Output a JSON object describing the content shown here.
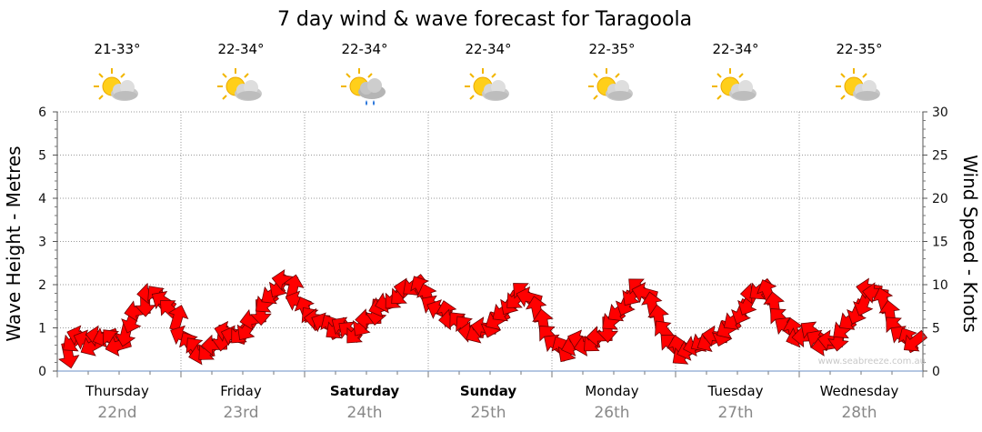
{
  "chart_data": {
    "type": "line",
    "title": "7 day wind & wave forecast for Taragoola",
    "ylabel_left": "Wave Height - Metres",
    "ylabel_right": "Wind Speed - Knots",
    "ylim_left": [
      0,
      6
    ],
    "ylim_right": [
      0,
      30
    ],
    "yticks_left": [
      "0",
      "1",
      "2",
      "3",
      "4",
      "5",
      "6"
    ],
    "yticks_right": [
      "0",
      "5",
      "10",
      "15",
      "20",
      "25",
      "30"
    ],
    "days": [
      {
        "name": "Thursday",
        "date": "22nd",
        "temp": "21-33°",
        "icon": "partly-cloudy-icon",
        "bold": false
      },
      {
        "name": "Friday",
        "date": "23rd",
        "temp": "22-34°",
        "icon": "partly-cloudy-icon",
        "bold": false
      },
      {
        "name": "Saturday",
        "date": "24th",
        "temp": "22-34°",
        "icon": "showers-icon",
        "bold": true
      },
      {
        "name": "Sunday",
        "date": "25th",
        "temp": "22-34°",
        "icon": "partly-cloudy-icon",
        "bold": true
      },
      {
        "name": "Monday",
        "date": "26th",
        "temp": "22-35°",
        "icon": "partly-cloudy-icon",
        "bold": false
      },
      {
        "name": "Tuesday",
        "date": "27th",
        "temp": "22-34°",
        "icon": "partly-cloudy-icon",
        "bold": false
      },
      {
        "name": "Wednesday",
        "date": "28th",
        "temp": "22-35°",
        "icon": "partly-cloudy-icon",
        "bold": false
      }
    ],
    "series": [
      {
        "name": "Wind Speed (knots)",
        "color": "#ff0000",
        "unit_axis": "right",
        "values": [
          2,
          3.5,
          4,
          3.5,
          3,
          4,
          4,
          3.5,
          3,
          4.5,
          6,
          7,
          8,
          9,
          8.5,
          8,
          7,
          6,
          4,
          3,
          2.5,
          2,
          2.5,
          3,
          4,
          4.5,
          4,
          4.5,
          5,
          6,
          7,
          8,
          9,
          10,
          10.5,
          9.5,
          8,
          7,
          6,
          6,
          5.5,
          5,
          5,
          5,
          4.5,
          4.5,
          5.5,
          6,
          7,
          7.5,
          8,
          8.5,
          9,
          9.5,
          10,
          9.5,
          8.5,
          7.5,
          7,
          6.5,
          6,
          5.5,
          5,
          4.5,
          4.5,
          5,
          5.5,
          6,
          7,
          8,
          8.5,
          9,
          8.5,
          7,
          5.5,
          4,
          3,
          2.5,
          2.5,
          3,
          3.5,
          3,
          3.5,
          4,
          5,
          6,
          7,
          8,
          9,
          9.5,
          9,
          7.5,
          6,
          4.5,
          3,
          2.5,
          2,
          2.5,
          3,
          3.5,
          3.5,
          4,
          4.5,
          5,
          6,
          7,
          8,
          9,
          9.5,
          9,
          7.5,
          6,
          5,
          4.5,
          4,
          4,
          4.5,
          3.5,
          3,
          3.5,
          4,
          5,
          6,
          7,
          8,
          9.5,
          9,
          8,
          6.5,
          5,
          4,
          3.5,
          3.5
        ]
      }
    ],
    "watermark": "www.seabreeze.com.au"
  }
}
